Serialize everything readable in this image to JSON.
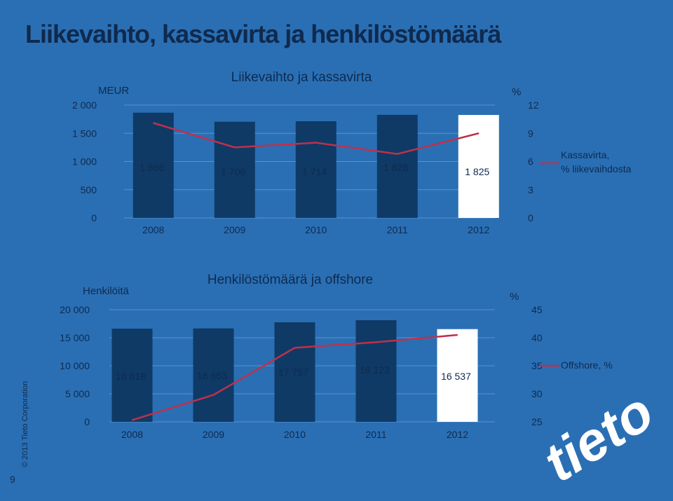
{
  "page": {
    "title": "Liikevaihto, kassavirta ja henkilöstömäärä",
    "copyright": "© 2013 Tieto Corporation",
    "page_number": "9",
    "logo_text": "tieto"
  },
  "colors": {
    "background": "#2a6fb4",
    "bar": "#0f3a66",
    "bar_highlight": "#ffffff",
    "line": "#c0304a",
    "text": "#0f2a4e",
    "title": "#0f2a4e"
  },
  "chart_data": [
    {
      "type": "bar",
      "title": "Liikevaihto ja kassavirta",
      "ylabel": "MEUR",
      "y2label": "%",
      "categories": [
        "2008",
        "2009",
        "2010",
        "2011",
        "2012"
      ],
      "ylim": [
        0,
        2000
      ],
      "y_ticks": [
        "0",
        "500",
        "1 000",
        "1 500",
        "2 000"
      ],
      "y2lim": [
        0,
        12
      ],
      "y2_ticks": [
        "0",
        "3",
        "6",
        "9",
        "12"
      ],
      "series": [
        {
          "type": "bar",
          "values": [
            1866,
            1706,
            1714,
            1828,
            1825
          ],
          "data_labels": [
            "1 866",
            "1 706",
            "1 714",
            "1 828",
            "1 825"
          ],
          "highlight_index": 4
        },
        {
          "type": "line",
          "name": "Kassavirta, % liikevaihdosta",
          "axis": "secondary",
          "values": [
            10.1,
            7.5,
            8.0,
            6.8,
            9.0
          ]
        }
      ],
      "legend": {
        "position": "right",
        "line1": "Kassavirta,",
        "line2": "% liikevaihdosta"
      }
    },
    {
      "type": "bar",
      "title": "Henkilöstömäärä ja offshore",
      "ylabel": "Henkilöitä",
      "y2label": "%",
      "categories": [
        "2008",
        "2009",
        "2010",
        "2011",
        "2012"
      ],
      "ylim": [
        0,
        20000
      ],
      "y_ticks": [
        "0",
        "5 000",
        "10 000",
        "15 000",
        "20 000"
      ],
      "y2lim": [
        25,
        45
      ],
      "y2_ticks": [
        "25",
        "30",
        "35",
        "40",
        "45"
      ],
      "series": [
        {
          "type": "bar",
          "values": [
            16618,
            16663,
            17757,
            18123,
            16537
          ],
          "data_labels": [
            "16 618",
            "16 663",
            "17 757",
            "18 123",
            "16 537"
          ],
          "highlight_index": 4
        },
        {
          "type": "line",
          "name": "Offshore, %",
          "axis": "secondary",
          "values": [
            25.3,
            29.8,
            38.2,
            39.2,
            40.5
          ]
        }
      ],
      "legend": {
        "position": "right",
        "line1": "Offshore, %"
      }
    }
  ]
}
